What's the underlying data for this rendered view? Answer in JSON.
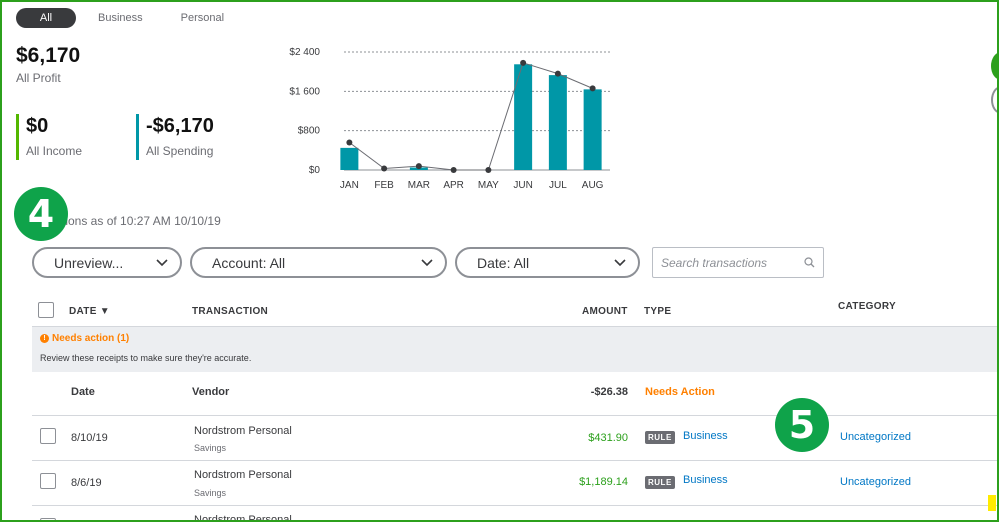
{
  "tabs": [
    "All",
    "Business",
    "Personal"
  ],
  "summary": {
    "profit_amount": "$6,170",
    "profit_label": "All Profit",
    "income_amount": "$0",
    "income_label": "All Income",
    "spending_amount": "-$6,170",
    "spending_label": "All Spending"
  },
  "colors": {
    "income": "#53b700",
    "spending": "#0097a7",
    "bar": "#0097a7",
    "badge": "#0fa34a",
    "needs_action": "#ff8000",
    "link": "#0077c5",
    "positive": "#2ca01c"
  },
  "chart_data": {
    "type": "bar",
    "categories": [
      "JAN",
      "FEB",
      "MAR",
      "APR",
      "MAY",
      "JUN",
      "JUL",
      "AUG"
    ],
    "values": [
      450,
      0,
      50,
      0,
      0,
      2150,
      1930,
      1640
    ],
    "line_values": [
      560,
      30,
      80,
      0,
      0,
      2180,
      1960,
      1660
    ],
    "y_ticks": [
      "$0",
      "$800",
      "$1 600",
      "$2 400"
    ],
    "ylim": [
      0,
      2400
    ],
    "grid": true
  },
  "badges": {
    "four": "4",
    "five": "5"
  },
  "as_of_text": "tions as of 10:27 AM 10/10/19",
  "filters": {
    "status": "Unreview...",
    "account": "Account: All",
    "date": "Date: All",
    "search_placeholder": "Search transactions"
  },
  "table": {
    "headers": {
      "date": "DATE ▼",
      "transaction": "TRANSACTION",
      "amount": "AMOUNT",
      "type": "TYPE",
      "category": "CATEGORY"
    },
    "needs_action": {
      "title": "Needs action (1)",
      "desc": "Review these receipts to make sure they're accurate."
    },
    "receipt": {
      "date": "Date",
      "vendor": "Vendor",
      "amount": "-$26.38",
      "status": "Needs Action"
    },
    "rows": [
      {
        "date": "8/10/19",
        "vendor": "Nordstrom Personal",
        "account": "Savings",
        "amount": "$431.90",
        "rule": "RULE",
        "type": "Business",
        "category": "Uncategorized"
      },
      {
        "date": "8/6/19",
        "vendor": "Nordstrom Personal",
        "account": "Savings",
        "amount": "$1,189.14",
        "rule": "RULE",
        "type": "Business",
        "category": "Uncategorized"
      },
      {
        "vendor": "Nordstrom Personal"
      }
    ]
  }
}
